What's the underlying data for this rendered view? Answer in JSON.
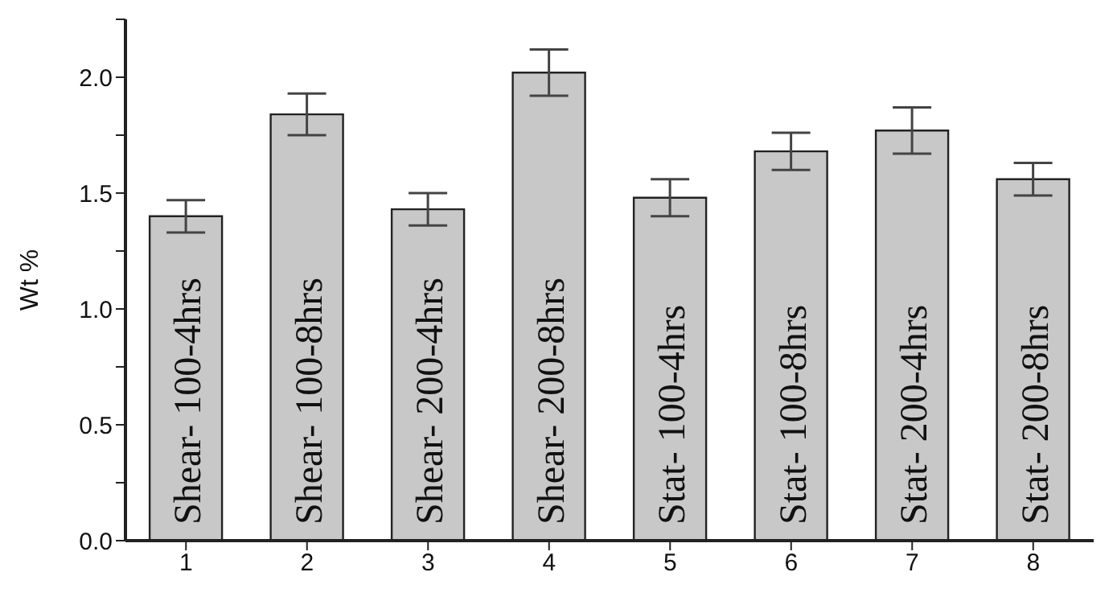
{
  "chart_data": {
    "type": "bar",
    "ylabel": "Wt %",
    "categories": [
      "1",
      "2",
      "3",
      "4",
      "5",
      "6",
      "7",
      "8"
    ],
    "values": [
      1.4,
      1.84,
      1.43,
      2.02,
      1.48,
      1.68,
      1.77,
      1.56
    ],
    "errors": [
      0.07,
      0.09,
      0.07,
      0.1,
      0.08,
      0.08,
      0.1,
      0.07
    ],
    "color": "#c8c8c8",
    "ylim": [
      0,
      2.25
    ],
    "yticks": [
      {
        "value": 0,
        "label": "0.0"
      },
      {
        "value": 0.25,
        "label": null
      },
      0.5,
      {
        "value": 0.75,
        "label": null
      },
      {
        "value": 1,
        "label": "1.0"
      },
      {
        "value": 1.25,
        "label": null
      },
      1.5,
      {
        "value": 1.75,
        "label": null
      },
      {
        "value": 2,
        "label": "2.0"
      },
      {
        "value": 2.25,
        "label": null
      }
    ],
    "annotations": [
      "Shear- 100-4hrs",
      "Shear- 100-8hrs",
      "Shear- 200-4hrs",
      "Shear- 200-8hrs",
      "Stat- 100-4hrs",
      "Stat- 100-8hrs",
      "Stat- 200-4hrs",
      "Stat- 200-8hrs"
    ],
    "grid": false,
    "legend": false
  }
}
